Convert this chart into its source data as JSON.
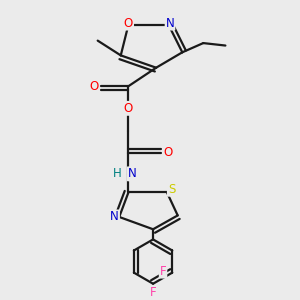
{
  "background_color": "#ebebeb",
  "bond_color": "#1a1a1a",
  "colors": {
    "O": "#ff0000",
    "N": "#0000cc",
    "S": "#cccc00",
    "F": "#ff44aa",
    "H": "#008080",
    "C": "#1a1a1a"
  },
  "figsize": [
    3.0,
    3.0
  ],
  "dpi": 100
}
